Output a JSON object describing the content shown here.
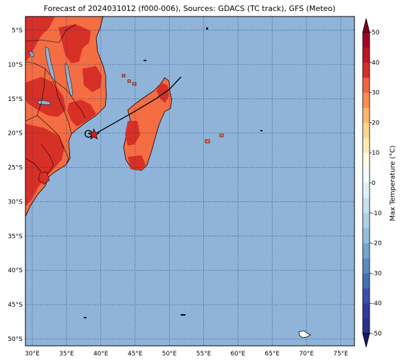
{
  "title": "Forecast of 2024031012 (f000-006), Sources: GDACS (TC track), GFS (Meteo)",
  "colors": {
    "ocean": "#8fb3d9",
    "land_high": "#d73027",
    "land_mid": "#f46d43",
    "grid": "#1f2f5a",
    "track": "#000000",
    "storm_marker": "#e41a1c"
  },
  "map": {
    "lon_range": [
      29,
      77
    ],
    "lat_range": [
      -51,
      -3
    ],
    "lon_ticks": [
      {
        "value": 30,
        "label": "30°E"
      },
      {
        "value": 35,
        "label": "35°E"
      },
      {
        "value": 40,
        "label": "40°E"
      },
      {
        "value": 45,
        "label": "45°E"
      },
      {
        "value": 50,
        "label": "50°E"
      },
      {
        "value": 55,
        "label": "55°E"
      },
      {
        "value": 60,
        "label": "60°E"
      },
      {
        "value": 65,
        "label": "65°E"
      },
      {
        "value": 70,
        "label": "70°E"
      },
      {
        "value": 75,
        "label": "75°E"
      }
    ],
    "lat_ticks": [
      {
        "value": -5,
        "label": "5°S"
      },
      {
        "value": -10,
        "label": "10°S"
      },
      {
        "value": -15,
        "label": "15°S"
      },
      {
        "value": -20,
        "label": "20°S"
      },
      {
        "value": -25,
        "label": "25°S"
      },
      {
        "value": -30,
        "label": "30°S"
      },
      {
        "value": -35,
        "label": "35°S"
      },
      {
        "value": -40,
        "label": "40°S"
      },
      {
        "value": -45,
        "label": "45°S"
      },
      {
        "value": -50,
        "label": "50°S"
      }
    ],
    "track": [
      [
        38.2,
        -20.1
      ],
      [
        39.0,
        -20.2
      ],
      [
        42.0,
        -18.5
      ],
      [
        45.0,
        -16.8
      ],
      [
        48.0,
        -15.0
      ],
      [
        50.0,
        -13.6
      ],
      [
        51.7,
        -11.8
      ]
    ],
    "storm_position": [
      39.0,
      -20.2
    ],
    "circle_position": [
      38.2,
      -20.1
    ]
  },
  "colorbar": {
    "label": "Max Temperature (°C)",
    "min": -55,
    "max": 55,
    "ticks": [
      50,
      40,
      30,
      20,
      10,
      0,
      -10,
      -20,
      -30,
      -40,
      -50
    ],
    "bins": [
      {
        "from": -50,
        "to": -45,
        "color": "#2b2f8c"
      },
      {
        "from": -45,
        "to": -40,
        "color": "#323b9a"
      },
      {
        "from": -40,
        "to": -35,
        "color": "#3b4fa6"
      },
      {
        "from": -35,
        "to": -30,
        "color": "#4470b4"
      },
      {
        "from": -30,
        "to": -25,
        "color": "#5b8ac2"
      },
      {
        "from": -25,
        "to": -20,
        "color": "#74a5ce"
      },
      {
        "from": -20,
        "to": -15,
        "color": "#91bfdb"
      },
      {
        "from": -15,
        "to": -10,
        "color": "#abd2e5"
      },
      {
        "from": -10,
        "to": -5,
        "color": "#c6e2ee"
      },
      {
        "from": -5,
        "to": 0,
        "color": "#e0f1f5"
      },
      {
        "from": 0,
        "to": 5,
        "color": "#f3fafb"
      },
      {
        "from": 5,
        "to": 10,
        "color": "#fffae6"
      },
      {
        "from": 10,
        "to": 15,
        "color": "#fee9b8"
      },
      {
        "from": 15,
        "to": 20,
        "color": "#fdd492"
      },
      {
        "from": 20,
        "to": 25,
        "color": "#fdb56e"
      },
      {
        "from": 25,
        "to": 30,
        "color": "#f98d52"
      },
      {
        "from": 30,
        "to": 35,
        "color": "#f06540"
      },
      {
        "from": 35,
        "to": 40,
        "color": "#d73027"
      },
      {
        "from": 40,
        "to": 45,
        "color": "#bd1726"
      },
      {
        "from": 45,
        "to": 50,
        "color": "#a50026"
      }
    ],
    "under_color": "#1a1a5e",
    "over_color": "#7a0020"
  }
}
